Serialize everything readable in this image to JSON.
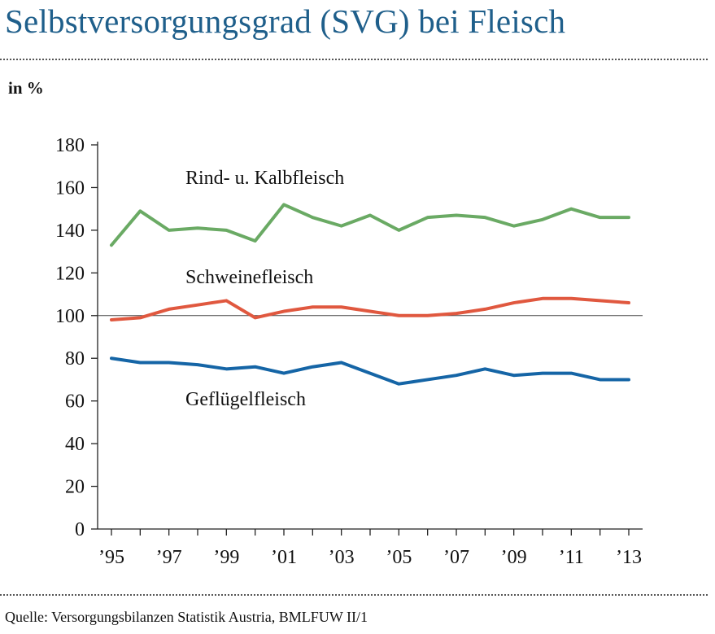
{
  "title": "Selbstversorgungsgrad (SVG) bei Fleisch",
  "unit_label": "in %",
  "source": "Quelle: Versorgungsbilanzen Statistik Austria, BMLFUW II/1",
  "chart_data": {
    "type": "line",
    "x": [
      1995,
      1996,
      1997,
      1998,
      1999,
      2000,
      2001,
      2002,
      2003,
      2004,
      2005,
      2006,
      2007,
      2008,
      2009,
      2010,
      2011,
      2012,
      2013
    ],
    "x_tick_values": [
      1995,
      1997,
      1999,
      2001,
      2003,
      2005,
      2007,
      2009,
      2011,
      2013
    ],
    "x_tick_labels": [
      "’95",
      "’97",
      "’99",
      "’01",
      "’03",
      "’05",
      "’07",
      "’09",
      "’11",
      "’13"
    ],
    "ylim": [
      0,
      180
    ],
    "y_ticks": [
      0,
      20,
      40,
      60,
      80,
      100,
      120,
      140,
      160,
      180
    ],
    "reference_line": 100,
    "series": [
      {
        "name": "Rind- u. Kalbfleisch",
        "color": "#6aaa64",
        "values": [
          133,
          149,
          140,
          141,
          140,
          135,
          152,
          146,
          142,
          147,
          140,
          146,
          147,
          146,
          142,
          145,
          150,
          146,
          146
        ]
      },
      {
        "name": "Schweinefleisch",
        "color": "#e0583f",
        "values": [
          98,
          99,
          103,
          105,
          107,
          99,
          102,
          104,
          104,
          102,
          100,
          100,
          101,
          103,
          106,
          108,
          108,
          107,
          106
        ]
      },
      {
        "name": "Geflügelfleisch",
        "color": "#1565a6",
        "values": [
          80,
          78,
          78,
          77,
          75,
          76,
          73,
          76,
          78,
          73,
          68,
          70,
          72,
          75,
          72,
          73,
          73,
          70,
          70
        ]
      }
    ]
  }
}
